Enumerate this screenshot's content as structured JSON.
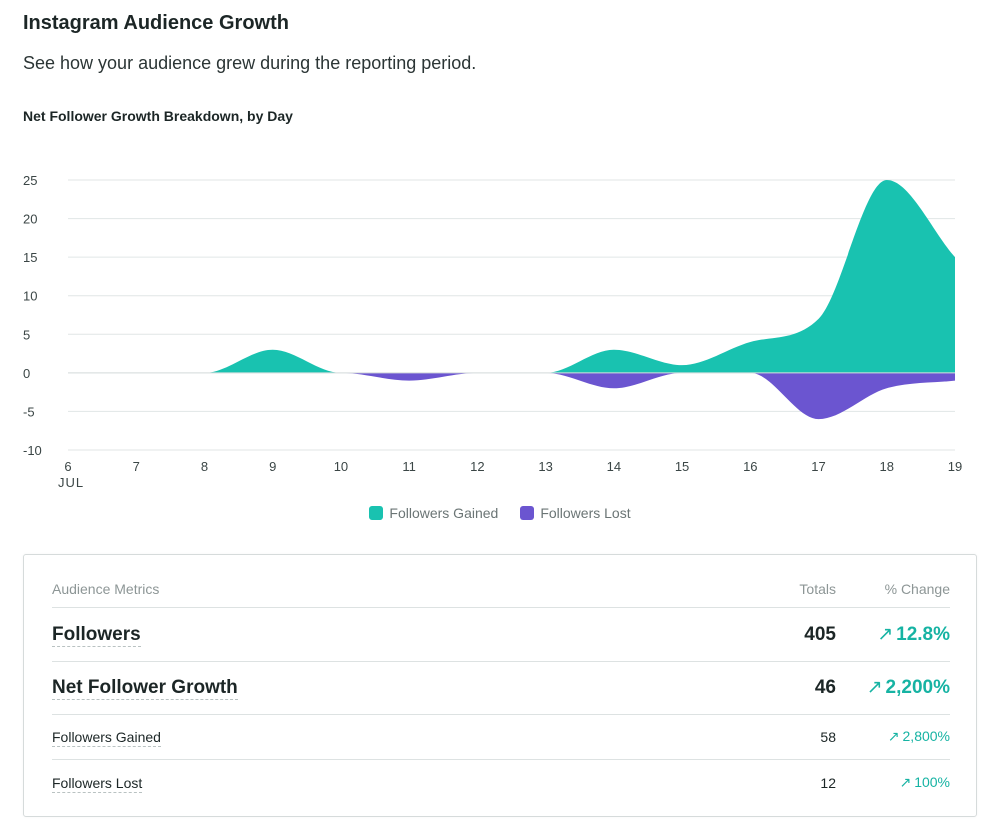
{
  "header": {
    "title": "Instagram Audience Growth",
    "subtitle": "See how your audience grew during the reporting period."
  },
  "chart_data": {
    "type": "area",
    "title": "Net Follower Growth Breakdown, by Day",
    "x": [
      "6",
      "7",
      "8",
      "9",
      "10",
      "11",
      "12",
      "13",
      "14",
      "15",
      "16",
      "17",
      "18",
      "19"
    ],
    "x_sub_label": "JUL",
    "ylim": [
      -10,
      25
    ],
    "yticks": [
      25,
      20,
      15,
      10,
      5,
      0,
      -5,
      -10
    ],
    "grid": true,
    "legend_position": "bottom",
    "series": [
      {
        "name": "Followers Gained",
        "color": "#19c2b0",
        "values": [
          0,
          0,
          0,
          3,
          0,
          0,
          0,
          0,
          3,
          1,
          4,
          7,
          25,
          15
        ]
      },
      {
        "name": "Followers Lost",
        "color": "#6b55d0",
        "values": [
          0,
          0,
          0,
          0,
          0,
          -1,
          0,
          0,
          -2,
          0,
          0,
          -6,
          -2,
          -1
        ]
      }
    ]
  },
  "metrics": {
    "header": {
      "label": "Audience Metrics",
      "totals": "Totals",
      "change": "% Change"
    },
    "arrow": "↗",
    "rows": [
      {
        "label": "Followers",
        "total": "405",
        "change": "12.8%"
      },
      {
        "label": "Net Follower Growth",
        "total": "46",
        "change": "2,200%"
      },
      {
        "label": "Followers Gained",
        "total": "58",
        "change": "2,800%"
      },
      {
        "label": "Followers Lost",
        "total": "12",
        "change": "100%"
      }
    ]
  }
}
